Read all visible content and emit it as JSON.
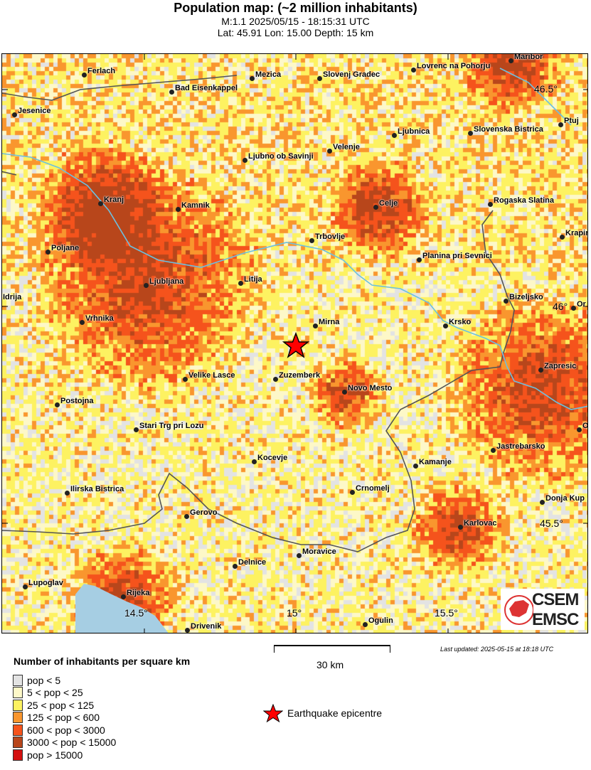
{
  "header": {
    "title": "Population map: (~2 million inhabitants)",
    "event_line": "M:1.1 2025/05/15 - 18:15:31 UTC",
    "location_line": "Lat: 45.91 Lon: 15.00 Depth: 15 km"
  },
  "map": {
    "cities": [
      "Ferlach",
      "Mezica",
      "Slovenj Gradec",
      "Lovrenc na Pohorju",
      "Maribor",
      "Bad Eisenkappel",
      "Jesenice",
      "Ptuj",
      "Ljubnica",
      "Slovenska Bistrica",
      "Velenje",
      "Ljubno ob Savinji",
      "Kranj",
      "Kamnik",
      "Celje",
      "Rogaska Slatina",
      "Trbovlje",
      "Krapin",
      "Poljane",
      "Planina pri Sevnici",
      "Ljubljana",
      "Litija",
      "Idrija",
      "Bizeljsko",
      "Or",
      "Vrhnika",
      "Mirna",
      "Krsko",
      "Zapresic",
      "Velike Lasce",
      "Zuzemberk",
      "Novo Mesto",
      "Postojna",
      "Stari Trg pri Lozu",
      "O",
      "Jastrebarsko",
      "Kamanje",
      "Kocevje",
      "Crnomelj",
      "Ilirska Bistrica",
      "Donja Kup",
      "Gerovo",
      "Karlovac",
      "Moravice",
      "Delnice",
      "Lupoglav",
      "Rijeka",
      "Ogulin",
      "Drivenik"
    ],
    "grid_labels": {
      "lat_46_5": "46.5°",
      "lat_46": "46°",
      "lat_45_5": "45.5°",
      "lon_14_5": "14.5°",
      "lon_15": "15°",
      "lon_15_5": "15.5°"
    },
    "epicentre": {
      "lat": 45.91,
      "lon": 15.0,
      "color": "#ff0000"
    },
    "river_color": "#6cc0e0",
    "sea_color": "#a6cee3",
    "logo": {
      "line1": "CSEM",
      "line2": "EMSC"
    }
  },
  "scale": {
    "label": "30 km"
  },
  "last_updated": "Last updated: 2025-05-15 at 18:18 UTC",
  "legend": {
    "title": "Number of inhabitants per square km",
    "items": [
      {
        "label": "pop < 5",
        "color": "#e3e3e3"
      },
      {
        "label": "5 < pop < 25",
        "color": "#fdf8c8"
      },
      {
        "label": "25 < pop < 125",
        "color": "#fdf261"
      },
      {
        "label": "125 < pop < 600",
        "color": "#f9962e"
      },
      {
        "label": "600 < pop < 3000",
        "color": "#f5531c"
      },
      {
        "label": "3000 < pop < 15000",
        "color": "#b8461b"
      },
      {
        "label": "pop > 15000",
        "color": "#d4100f"
      }
    ],
    "epicentre_label": "Earthquake epicentre"
  }
}
